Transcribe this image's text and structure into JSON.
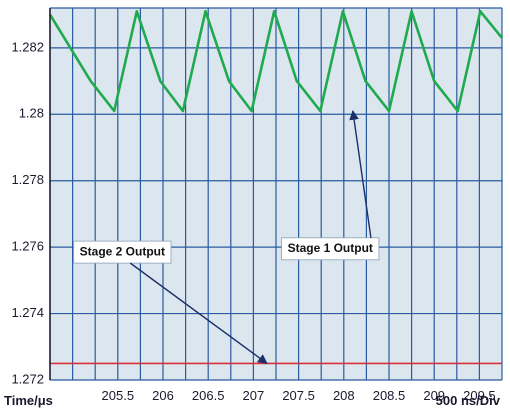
{
  "colors": {
    "plot_background": "#dce6ee",
    "grid": "#2a5aa0",
    "stage1": "#1faa4e",
    "stage2": "#d9323a",
    "arrow": "#1b2f6b"
  },
  "chart_data": {
    "type": "line",
    "x_label": "Time/μs",
    "div_label": "500 ns/Div",
    "xlim": [
      204.75,
      209.75
    ],
    "ylim": [
      1.272,
      1.2832
    ],
    "x_ticks": [
      205.5,
      206,
      206.5,
      207,
      207.5,
      208,
      208.5,
      209,
      209.5
    ],
    "x_tick_labels": [
      "205.5",
      "206",
      "206.5",
      "207",
      "207.5",
      "208",
      "208.5",
      "209",
      "209.5"
    ],
    "y_ticks": [
      1.272,
      1.274,
      1.276,
      1.278,
      1.28,
      1.282
    ],
    "y_tick_labels": [
      "1.272",
      "1.274",
      "1.276",
      "1.278",
      "1.28",
      "1.282"
    ],
    "grid": true,
    "series": [
      {
        "name": "Stage 1 Output",
        "color_key": "stage1",
        "x": [
          204.75,
          205.2,
          205.46,
          205.71,
          205.97,
          206.22,
          206.47,
          206.73,
          206.98,
          207.23,
          207.48,
          207.74,
          207.99,
          208.24,
          208.5,
          208.75,
          209.0,
          209.26,
          209.51,
          209.75
        ],
        "y": [
          1.283,
          1.281,
          1.2801,
          1.2831,
          1.281,
          1.2801,
          1.2831,
          1.281,
          1.2801,
          1.2831,
          1.281,
          1.2801,
          1.2831,
          1.281,
          1.2801,
          1.2831,
          1.281,
          1.2801,
          1.2831,
          1.2823
        ]
      },
      {
        "name": "Stage 2 Output",
        "color_key": "stage2",
        "x": [
          204.75,
          209.75
        ],
        "y": [
          1.2725,
          1.2725
        ]
      }
    ],
    "annotations": [
      {
        "text": "Stage 1 Output",
        "box_x": 207.85,
        "box_y": 1.27595,
        "target_x": 208.1,
        "target_y": 1.2801
      },
      {
        "text": "Stage 2 Output",
        "box_x": 205.55,
        "box_y": 1.27585,
        "target_x": 207.15,
        "target_y": 1.2725
      }
    ]
  }
}
